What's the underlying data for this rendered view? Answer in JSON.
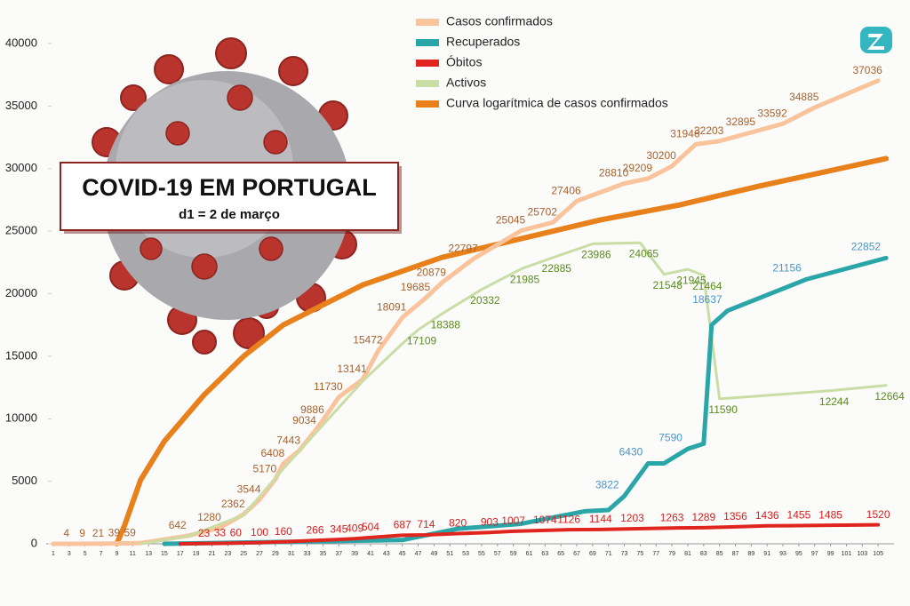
{
  "chart_data": {
    "type": "line",
    "title": "COVID-19 EM PORTUGAL",
    "subtitle": "d1 = 2 de março",
    "xlim": [
      1,
      107
    ],
    "ylim": [
      0,
      40000
    ],
    "xticks": [
      1,
      3,
      5,
      7,
      9,
      11,
      13,
      15,
      17,
      19,
      21,
      23,
      25,
      27,
      29,
      31,
      33,
      35,
      37,
      39,
      41,
      43,
      45,
      47,
      49,
      51,
      53,
      55,
      57,
      59,
      61,
      63,
      65,
      67,
      69,
      71,
      73,
      75,
      77,
      79,
      81,
      83,
      85,
      87,
      89,
      91,
      93,
      95,
      97,
      99,
      101,
      103,
      105
    ],
    "yticks": [
      0,
      5000,
      10000,
      15000,
      20000,
      25000,
      30000,
      35000,
      40000
    ],
    "grid": false,
    "series": [
      {
        "name": "Casos confirmados",
        "color": "#f9c49c",
        "label_color": "#a8622e",
        "width": 5,
        "x": [
          1,
          4,
          6,
          8,
          10,
          12,
          18,
          22,
          25,
          27,
          29,
          30,
          32,
          34,
          35,
          37,
          40,
          42,
          45,
          48,
          50,
          54,
          60,
          64,
          67,
          73,
          76,
          79,
          82,
          85,
          89,
          93,
          97,
          105
        ],
        "values": [
          0,
          4,
          9,
          21,
          39,
          59,
          642,
          1280,
          2362,
          3544,
          5170,
          6408,
          7443,
          9034,
          9886,
          11730,
          13141,
          15472,
          18091,
          19685,
          20879,
          22797,
          25045,
          25702,
          27406,
          28810,
          29209,
          30200,
          31946,
          32203,
          32895,
          33592,
          34885,
          37036
        ],
        "value_labels": [
          null,
          "4",
          "9",
          "21",
          "39",
          "59",
          "642",
          "1280",
          "2362",
          "3544",
          "5170",
          "6408",
          "7443",
          "9034",
          "9886",
          "11730",
          "13141",
          "15472",
          "18091",
          "19685",
          "20879",
          "22797",
          "25045",
          "25702",
          "27406",
          "28810",
          "29209",
          "30200",
          "31946",
          "32203",
          "32895",
          "33592",
          "34885",
          "37036"
        ]
      },
      {
        "name": "Recuperados",
        "color": "#2aa6a8",
        "label_color": "#4a96c8",
        "width": 5,
        "x": [
          15,
          45,
          52,
          60,
          68,
          71,
          73,
          76,
          78,
          81,
          83,
          84,
          86,
          96,
          106
        ],
        "values": [
          0,
          300,
          1200,
          1600,
          2600,
          2700,
          3822,
          6430,
          6430,
          7590,
          8000,
          17500,
          18637,
          21156,
          22852
        ],
        "value_labels": [
          null,
          null,
          null,
          null,
          null,
          null,
          "3822",
          "6430",
          null,
          "7590",
          null,
          null,
          "18637",
          "21156",
          "22852"
        ]
      },
      {
        "name": "Óbitos",
        "color": "#e0241e",
        "label_color": "#d42020",
        "width": 4,
        "x": [
          17,
          20,
          22,
          24,
          27,
          30,
          34,
          37,
          39,
          41,
          45,
          48,
          52,
          56,
          59,
          63,
          66,
          70,
          74,
          79,
          83,
          87,
          91,
          95,
          99,
          105
        ],
        "values": [
          0,
          23,
          33,
          60,
          100,
          160,
          266,
          345,
          409,
          504,
          687,
          714,
          820,
          903,
          1007,
          1074,
          1126,
          1144,
          1203,
          1263,
          1289,
          1356,
          1436,
          1455,
          1485,
          1520
        ],
        "value_labels": [
          null,
          "23",
          "33",
          "60",
          "100",
          "160",
          "266",
          "345",
          "409",
          "504",
          "687",
          "714",
          "820",
          "903",
          "1007",
          "1074",
          "1126",
          "1144",
          "1203",
          "1263",
          "1289",
          "1356",
          "1436",
          "1455",
          "1485",
          "1520"
        ]
      },
      {
        "name": "Activos",
        "color": "#cadda4",
        "label_color": "#5a8c1e",
        "width": 3,
        "x": [
          12,
          18,
          25,
          30,
          35,
          40,
          45,
          47,
          50,
          55,
          60,
          64,
          69,
          75,
          78,
          81,
          83,
          85,
          99,
          106
        ],
        "values": [
          0,
          600,
          2300,
          6000,
          9500,
          13000,
          16000,
          17109,
          18388,
          20332,
          21985,
          22885,
          23986,
          24065,
          21548,
          21945,
          21464,
          11590,
          12244,
          12664
        ],
        "value_labels": [
          null,
          null,
          null,
          null,
          null,
          null,
          null,
          "17109",
          "18388",
          "20332",
          "21985",
          "22885",
          "23986",
          "24065",
          "21548",
          "21945",
          "21464",
          "11590",
          "12244",
          "12664"
        ]
      },
      {
        "name": "Curva logarítmica de casos confirmados",
        "color": "#e8801c",
        "width": 6,
        "x": [
          9,
          10,
          12,
          15,
          20,
          25,
          30,
          40,
          50,
          60,
          70,
          80,
          90,
          106
        ],
        "values": [
          0,
          1500,
          5100,
          8200,
          11900,
          15000,
          17500,
          20700,
          22900,
          24400,
          25900,
          27100,
          28600,
          30800
        ]
      }
    ]
  }
}
